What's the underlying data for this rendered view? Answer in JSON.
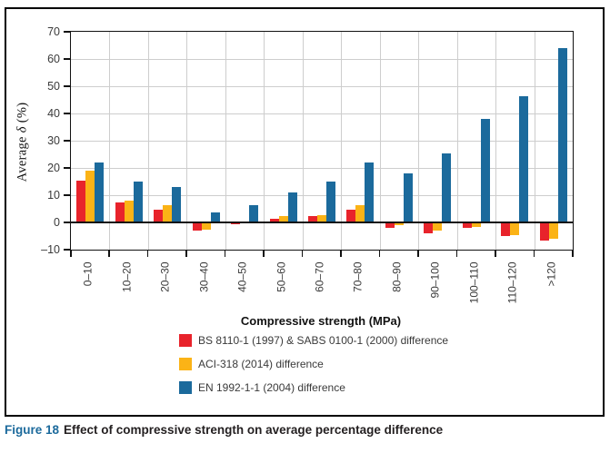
{
  "colors": {
    "red": "#e8232b",
    "yellow": "#fbb316",
    "blue": "#1b6a9c",
    "grid": "#cdcdcd",
    "axis": "#111111",
    "tick_text": "#3a3a3a",
    "caption_label_blue": "#1c6a9c"
  },
  "y_axis": {
    "title_prefix": "Average",
    "title_delta": "δ",
    "title_suffix": "(%)",
    "tick_labels": [
      "70",
      "60",
      "50",
      "40",
      "30",
      "20",
      "10",
      "0",
      "–10"
    ]
  },
  "x_axis": {
    "title": "Compressive strength (MPa)"
  },
  "chart_data": {
    "type": "bar",
    "title": "",
    "xlabel": "Compressive strength (MPa)",
    "ylabel": "Average δ (%)",
    "ylim": [
      -10,
      70
    ],
    "ytick_step": 10,
    "grid": true,
    "legend_position": "bottom",
    "categories": [
      "0–10",
      "10–20",
      "20–30",
      "30–40",
      "40–50",
      "50–60",
      "60–70",
      "70–80",
      "80–90",
      "90–100",
      "100–110",
      "110–120",
      ">120"
    ],
    "series": [
      {
        "name": "BS 8110-1 (1997) & SABS 0100-1 (2000) difference",
        "color": "#e8232b",
        "values": [
          15.5,
          7.3,
          4.8,
          -3,
          -0.7,
          1.3,
          2.5,
          4.8,
          -2,
          -4,
          -2,
          -5,
          -6.5
        ]
      },
      {
        "name": "ACI-318 (2014) difference",
        "color": "#fbb316",
        "values": [
          19,
          8,
          6.2,
          -2.5,
          0,
          2.3,
          2.8,
          6.2,
          -1,
          -3,
          -1.5,
          -4.5,
          -6
        ]
      },
      {
        "name": "EN 1992-1-1 (2004) difference",
        "color": "#1b6a9c",
        "values": [
          22,
          15,
          13,
          3.8,
          6.3,
          11,
          15,
          22,
          18,
          25.5,
          38,
          46.5,
          64
        ]
      }
    ]
  },
  "caption": {
    "figure_label": "Figure 18",
    "text": "Effect of compressive strength on average percentage difference"
  }
}
